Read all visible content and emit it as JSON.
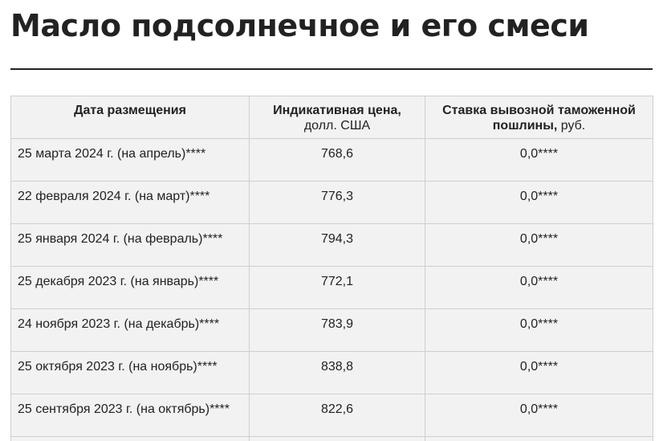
{
  "title": "Масло подсолнечное и его смеси",
  "table": {
    "headers": [
      {
        "bold": "Дата размещения",
        "normal": ""
      },
      {
        "bold": "Индикативная цена,",
        "normal": "долл. США"
      },
      {
        "bold": "Ставка вывозной таможенной пошлины,",
        "normal": " руб."
      }
    ],
    "rows": [
      {
        "date": "25 марта 2024 г. (на апрель)****",
        "price": "768,6",
        "duty": "0,0****"
      },
      {
        "date": "22 февраля 2024 г. (на март)****",
        "price": "776,3",
        "duty": "0,0****"
      },
      {
        "date": "25 января 2024 г. (на февраль)****",
        "price": "794,3",
        "duty": "0,0****"
      },
      {
        "date": "25 декабря 2023 г. (на январь)****",
        "price": "772,1",
        "duty": "0,0****"
      },
      {
        "date": "24 ноября 2023 г. (на декабрь)****",
        "price": "783,9",
        "duty": "0,0****"
      },
      {
        "date": "25 октября 2023 г. (на ноябрь)****",
        "price": "838,8",
        "duty": "0,0****"
      },
      {
        "date": "25 сентября 2023 г. (на октябрь)****",
        "price": "822,6",
        "duty": "0,0****"
      }
    ]
  }
}
